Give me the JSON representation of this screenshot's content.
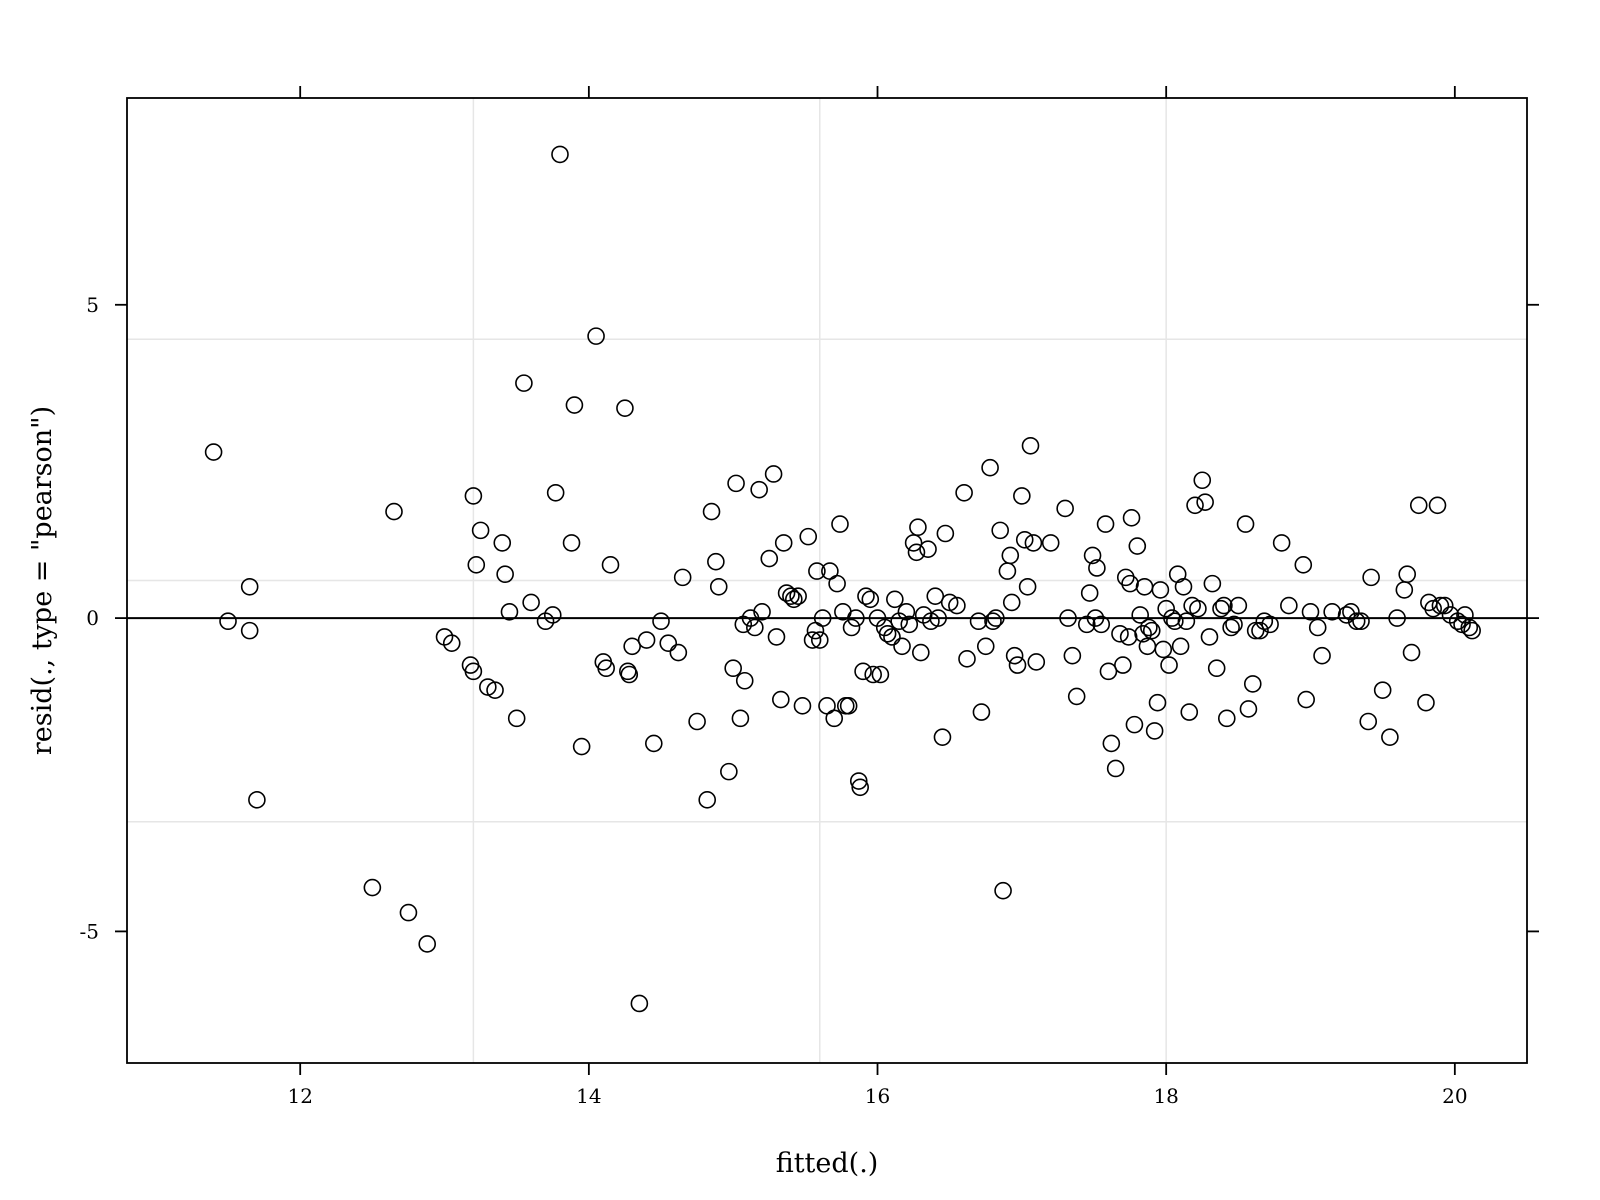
{
  "chart_data": {
    "type": "scatter",
    "title": "",
    "xlabel": "fitted(.)",
    "ylabel": "resid(., type = \"pearson\")",
    "xlim": [
      10.8,
      20.5
    ],
    "ylim": [
      -7.1,
      8.3
    ],
    "x_ticks": [
      12,
      14,
      16,
      18,
      20
    ],
    "x_tick_labels": [
      "12",
      "14",
      "16",
      "18",
      "20"
    ],
    "y_ticks": [
      -5,
      0,
      5
    ],
    "y_tick_labels": [
      "-5",
      "0",
      "5"
    ],
    "x_grid": [
      13.2,
      15.6,
      18.0
    ],
    "y_grid": [
      -3.25,
      0.6,
      4.45
    ],
    "reference_line_y": 0,
    "grid": true,
    "marker": "open-circle",
    "points": [
      [
        11.4,
        2.65
      ],
      [
        11.5,
        -0.05
      ],
      [
        11.65,
        0.5
      ],
      [
        11.65,
        -0.2
      ],
      [
        11.7,
        -2.9
      ],
      [
        12.5,
        -4.3
      ],
      [
        12.75,
        -4.7
      ],
      [
        12.88,
        -5.2
      ],
      [
        12.65,
        1.7
      ],
      [
        13.0,
        -0.3
      ],
      [
        13.05,
        -0.4
      ],
      [
        13.18,
        -0.75
      ],
      [
        13.2,
        -0.85
      ],
      [
        13.2,
        1.95
      ],
      [
        13.22,
        0.85
      ],
      [
        13.25,
        1.4
      ],
      [
        13.3,
        -1.1
      ],
      [
        13.35,
        -1.15
      ],
      [
        13.4,
        1.2
      ],
      [
        13.42,
        0.7
      ],
      [
        13.45,
        0.1
      ],
      [
        13.5,
        -1.6
      ],
      [
        13.55,
        3.75
      ],
      [
        13.6,
        0.25
      ],
      [
        13.7,
        -0.05
      ],
      [
        13.75,
        0.05
      ],
      [
        13.77,
        2.0
      ],
      [
        13.8,
        7.4
      ],
      [
        13.88,
        1.2
      ],
      [
        13.9,
        3.4
      ],
      [
        13.95,
        -2.05
      ],
      [
        14.05,
        4.5
      ],
      [
        14.1,
        -0.7
      ],
      [
        14.12,
        -0.8
      ],
      [
        14.15,
        0.85
      ],
      [
        14.25,
        3.35
      ],
      [
        14.27,
        -0.85
      ],
      [
        14.28,
        -0.9
      ],
      [
        14.3,
        -0.45
      ],
      [
        14.35,
        -6.15
      ],
      [
        14.4,
        -0.35
      ],
      [
        14.45,
        -2.0
      ],
      [
        14.5,
        -0.05
      ],
      [
        14.55,
        -0.4
      ],
      [
        14.62,
        -0.55
      ],
      [
        14.65,
        0.65
      ],
      [
        14.75,
        -1.65
      ],
      [
        14.82,
        -2.9
      ],
      [
        14.85,
        1.7
      ],
      [
        14.88,
        0.9
      ],
      [
        14.9,
        0.5
      ],
      [
        14.97,
        -2.45
      ],
      [
        15.0,
        -0.8
      ],
      [
        15.02,
        2.15
      ],
      [
        15.05,
        -1.6
      ],
      [
        15.07,
        -0.1
      ],
      [
        15.08,
        -1.0
      ],
      [
        15.12,
        0.0
      ],
      [
        15.15,
        -0.15
      ],
      [
        15.18,
        2.05
      ],
      [
        15.2,
        0.1
      ],
      [
        15.25,
        0.95
      ],
      [
        15.28,
        2.3
      ],
      [
        15.3,
        -0.3
      ],
      [
        15.33,
        -1.3
      ],
      [
        15.35,
        1.2
      ],
      [
        15.37,
        0.4
      ],
      [
        15.4,
        0.35
      ],
      [
        15.42,
        0.3
      ],
      [
        15.45,
        0.35
      ],
      [
        15.48,
        -1.4
      ],
      [
        15.52,
        1.3
      ],
      [
        15.55,
        -0.35
      ],
      [
        15.57,
        -0.2
      ],
      [
        15.58,
        0.75
      ],
      [
        15.6,
        -0.35
      ],
      [
        15.62,
        0.0
      ],
      [
        15.65,
        -1.4
      ],
      [
        15.67,
        0.75
      ],
      [
        15.7,
        -1.6
      ],
      [
        15.72,
        0.55
      ],
      [
        15.74,
        1.5
      ],
      [
        15.76,
        0.1
      ],
      [
        15.78,
        -1.4
      ],
      [
        15.8,
        -1.4
      ],
      [
        15.82,
        -0.15
      ],
      [
        15.85,
        0.0
      ],
      [
        15.87,
        -2.6
      ],
      [
        15.88,
        -2.7
      ],
      [
        15.9,
        -0.85
      ],
      [
        15.92,
        0.35
      ],
      [
        15.95,
        0.3
      ],
      [
        15.97,
        -0.9
      ],
      [
        16.0,
        0.0
      ],
      [
        16.02,
        -0.9
      ],
      [
        16.05,
        -0.15
      ],
      [
        16.07,
        -0.25
      ],
      [
        16.1,
        -0.3
      ],
      [
        16.12,
        0.3
      ],
      [
        16.15,
        -0.05
      ],
      [
        16.17,
        -0.45
      ],
      [
        16.2,
        0.1
      ],
      [
        16.22,
        -0.1
      ],
      [
        16.25,
        1.2
      ],
      [
        16.27,
        1.05
      ],
      [
        16.28,
        1.45
      ],
      [
        16.3,
        -0.55
      ],
      [
        16.32,
        0.05
      ],
      [
        16.35,
        1.1
      ],
      [
        16.37,
        -0.05
      ],
      [
        16.4,
        0.35
      ],
      [
        16.42,
        0.0
      ],
      [
        16.45,
        -1.9
      ],
      [
        16.47,
        1.35
      ],
      [
        16.5,
        0.25
      ],
      [
        16.55,
        0.2
      ],
      [
        16.6,
        2.0
      ],
      [
        16.62,
        -0.65
      ],
      [
        16.7,
        -0.05
      ],
      [
        16.72,
        -1.5
      ],
      [
        16.75,
        -0.45
      ],
      [
        16.78,
        2.4
      ],
      [
        16.8,
        -0.05
      ],
      [
        16.82,
        0.0
      ],
      [
        16.85,
        1.4
      ],
      [
        16.87,
        -4.35
      ],
      [
        16.9,
        0.75
      ],
      [
        16.92,
        1.0
      ],
      [
        16.93,
        0.25
      ],
      [
        16.95,
        -0.6
      ],
      [
        16.97,
        -0.75
      ],
      [
        17.0,
        1.95
      ],
      [
        17.02,
        1.25
      ],
      [
        17.04,
        0.5
      ],
      [
        17.06,
        2.75
      ],
      [
        17.08,
        1.2
      ],
      [
        17.1,
        -0.7
      ],
      [
        17.2,
        1.2
      ],
      [
        17.3,
        1.75
      ],
      [
        17.32,
        0.0
      ],
      [
        17.35,
        -0.6
      ],
      [
        17.38,
        -1.25
      ],
      [
        17.45,
        -0.1
      ],
      [
        17.47,
        0.4
      ],
      [
        17.49,
        1.0
      ],
      [
        17.51,
        0.0
      ],
      [
        17.52,
        0.8
      ],
      [
        17.55,
        -0.1
      ],
      [
        17.58,
        1.5
      ],
      [
        17.6,
        -0.85
      ],
      [
        17.62,
        -2.0
      ],
      [
        17.65,
        -2.4
      ],
      [
        17.68,
        -0.25
      ],
      [
        17.7,
        -0.75
      ],
      [
        17.72,
        0.65
      ],
      [
        17.74,
        -0.3
      ],
      [
        17.75,
        0.55
      ],
      [
        17.76,
        1.6
      ],
      [
        17.78,
        -1.7
      ],
      [
        17.8,
        1.15
      ],
      [
        17.82,
        0.05
      ],
      [
        17.84,
        -0.25
      ],
      [
        17.85,
        0.5
      ],
      [
        17.87,
        -0.45
      ],
      [
        17.88,
        -0.15
      ],
      [
        17.9,
        -0.2
      ],
      [
        17.92,
        -1.8
      ],
      [
        17.94,
        -1.35
      ],
      [
        17.96,
        0.45
      ],
      [
        17.98,
        -0.5
      ],
      [
        18.0,
        0.15
      ],
      [
        18.02,
        -0.75
      ],
      [
        18.04,
        0.0
      ],
      [
        18.06,
        -0.05
      ],
      [
        18.08,
        0.7
      ],
      [
        18.1,
        -0.45
      ],
      [
        18.12,
        0.5
      ],
      [
        18.14,
        -0.05
      ],
      [
        18.16,
        -1.5
      ],
      [
        18.18,
        0.2
      ],
      [
        18.2,
        1.8
      ],
      [
        18.22,
        0.15
      ],
      [
        18.25,
        2.2
      ],
      [
        18.27,
        1.85
      ],
      [
        18.3,
        -0.3
      ],
      [
        18.32,
        0.55
      ],
      [
        18.35,
        -0.8
      ],
      [
        18.38,
        0.15
      ],
      [
        18.4,
        0.2
      ],
      [
        18.42,
        -1.6
      ],
      [
        18.45,
        -0.15
      ],
      [
        18.47,
        -0.1
      ],
      [
        18.5,
        0.2
      ],
      [
        18.55,
        1.5
      ],
      [
        18.57,
        -1.45
      ],
      [
        18.6,
        -1.05
      ],
      [
        18.62,
        -0.2
      ],
      [
        18.65,
        -0.2
      ],
      [
        18.68,
        -0.05
      ],
      [
        18.72,
        -0.1
      ],
      [
        18.8,
        1.2
      ],
      [
        18.85,
        0.2
      ],
      [
        18.95,
        0.85
      ],
      [
        18.97,
        -1.3
      ],
      [
        19.0,
        0.1
      ],
      [
        19.05,
        -0.15
      ],
      [
        19.08,
        -0.6
      ],
      [
        19.15,
        0.1
      ],
      [
        19.25,
        0.05
      ],
      [
        19.28,
        0.1
      ],
      [
        19.32,
        -0.05
      ],
      [
        19.35,
        -0.05
      ],
      [
        19.4,
        -1.65
      ],
      [
        19.42,
        0.65
      ],
      [
        19.5,
        -1.15
      ],
      [
        19.55,
        -1.9
      ],
      [
        19.6,
        0.0
      ],
      [
        19.65,
        0.45
      ],
      [
        19.67,
        0.7
      ],
      [
        19.7,
        -0.55
      ],
      [
        19.75,
        1.8
      ],
      [
        19.8,
        -1.35
      ],
      [
        19.82,
        0.25
      ],
      [
        19.85,
        0.15
      ],
      [
        19.88,
        1.8
      ],
      [
        19.9,
        0.2
      ],
      [
        19.93,
        0.2
      ],
      [
        19.97,
        0.05
      ],
      [
        20.02,
        -0.05
      ],
      [
        20.05,
        -0.1
      ],
      [
        20.07,
        0.05
      ],
      [
        20.1,
        -0.15
      ],
      [
        20.12,
        -0.2
      ]
    ]
  }
}
